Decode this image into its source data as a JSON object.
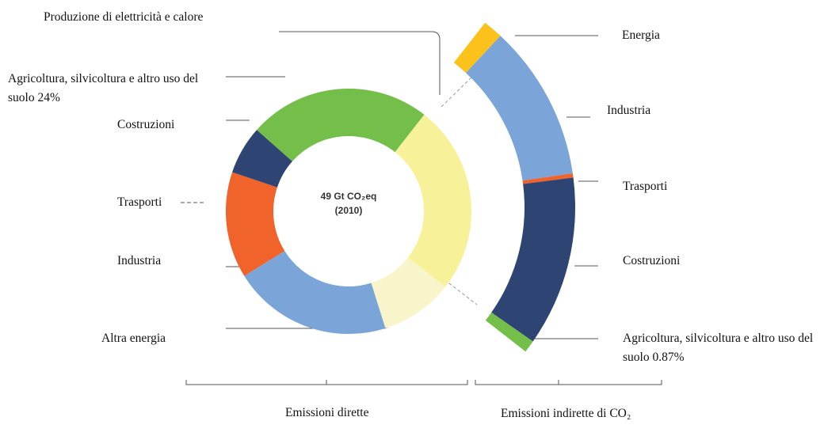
{
  "chart_data": [
    {
      "type": "donut",
      "center_label": "49 Gt CO₂eq",
      "center_sublabel": "(2010)",
      "bracket_label": "Emissioni dirette",
      "categories": [
        "Produzione di elettricità e calore",
        "Altra energia",
        "Industria",
        "Trasporti",
        "Costruzioni",
        "Agricoltura, silvicoltura e altro uso del suolo"
      ],
      "values": [
        25,
        9.6,
        21,
        14,
        6.4,
        24
      ],
      "value_labels": [
        null,
        null,
        null,
        null,
        null,
        "24%"
      ],
      "colors": [
        "#f7f29a",
        "#f7f5c9",
        "#7ba4d8",
        "#f0642c",
        "#2e4473",
        "#74bf4a"
      ]
    },
    {
      "type": "arc",
      "bracket_label": "Emissioni indirette di CO₂",
      "categories": [
        "Energia",
        "Industria",
        "Trasporti",
        "Costruzioni",
        "Agricoltura, silvicoltura e altro uso del suolo"
      ],
      "values": [
        1.4,
        11,
        0.3,
        12,
        0.87
      ],
      "value_labels": [
        null,
        null,
        null,
        null,
        "0.87%"
      ],
      "colors": [
        "#fbc21b",
        "#7ba4d8",
        "#f0642c",
        "#2e4473",
        "#74bf4a"
      ]
    }
  ]
}
